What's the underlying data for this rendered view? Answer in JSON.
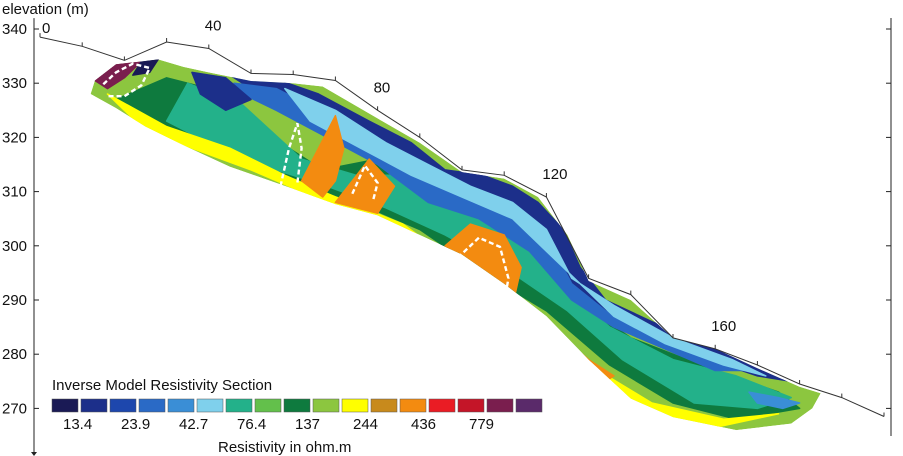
{
  "colors": {
    "palette": [
      "#1a1a55",
      "#1c2f8a",
      "#1d47ad",
      "#2a6ac6",
      "#3a8ed6",
      "#7fd0ec",
      "#23b18a",
      "#63c04b",
      "#0e7a3e",
      "#8cc63f",
      "#ffff00",
      "#c88a1c",
      "#f38b10",
      "#ea1c24",
      "#c41528",
      "#7a1e4e",
      "#5a2a6a"
    ],
    "boundary": "#ffffff",
    "topography": "#333333"
  },
  "chart_data": {
    "type": "heatmap",
    "ylabel": "elevation (m)",
    "xlabel": "",
    "ylim": [
      265,
      342
    ],
    "y_ticks": [
      340,
      330,
      320,
      310,
      300,
      290,
      280,
      270
    ],
    "x_distance_labels": [
      {
        "x": 0,
        "label": "0"
      },
      {
        "x": 40,
        "label": "40"
      },
      {
        "x": 80,
        "label": "80"
      },
      {
        "x": 120,
        "label": "120"
      },
      {
        "x": 160,
        "label": "160"
      }
    ],
    "topography": [
      [
        0,
        338.5
      ],
      [
        10,
        336.8
      ],
      [
        20,
        334.2
      ],
      [
        30,
        337.6
      ],
      [
        40,
        336.4
      ],
      [
        50,
        331.8
      ],
      [
        60,
        331.6
      ],
      [
        70,
        330.5
      ],
      [
        80,
        325.0
      ],
      [
        90,
        320.0
      ],
      [
        100,
        314.0
      ],
      [
        110,
        313.0
      ],
      [
        120,
        309.0
      ],
      [
        130,
        294.0
      ],
      [
        140,
        291.0
      ],
      [
        150,
        283.0
      ],
      [
        160,
        281.0
      ],
      [
        170,
        278.0
      ],
      [
        180,
        274.5
      ],
      [
        190,
        272.0
      ],
      [
        200,
        268.5
      ]
    ],
    "section_top": [
      [
        13,
        330.5
      ],
      [
        18,
        333.5
      ],
      [
        24,
        334.0
      ],
      [
        28,
        334.4
      ],
      [
        34,
        333.0
      ],
      [
        40,
        332.0
      ],
      [
        50,
        330.4
      ],
      [
        60,
        330.0
      ],
      [
        67,
        329.4
      ],
      [
        80,
        323.5
      ],
      [
        90,
        319.0
      ],
      [
        100,
        313.6
      ],
      [
        110,
        312.4
      ],
      [
        118,
        309.0
      ],
      [
        125,
        302.0
      ],
      [
        130,
        293.5
      ],
      [
        140,
        290.0
      ],
      [
        150,
        283.0
      ],
      [
        160,
        281.0
      ],
      [
        170,
        277.4
      ],
      [
        180,
        274.0
      ],
      [
        185,
        272.8
      ]
    ],
    "section_bottom": [
      [
        185,
        272.8
      ],
      [
        183,
        270.0
      ],
      [
        178,
        267.2
      ],
      [
        165,
        266.0
      ],
      [
        150,
        268.4
      ],
      [
        140,
        271.8
      ],
      [
        130,
        279.0
      ],
      [
        120,
        287.0
      ],
      [
        110,
        293.0
      ],
      [
        100,
        298.4
      ],
      [
        90,
        302.0
      ],
      [
        80,
        305.6
      ],
      [
        70,
        307.7
      ],
      [
        60,
        310.5
      ],
      [
        45,
        314.6
      ],
      [
        35,
        318.2
      ],
      [
        25,
        322.0
      ],
      [
        18,
        325.4
      ],
      [
        12,
        328.0
      ]
    ],
    "anomalies": [
      {
        "label": "conductive",
        "points": [
          [
            15,
            329.8
          ],
          [
            18,
            332.0
          ],
          [
            22,
            333.6
          ],
          [
            26,
            332.8
          ],
          [
            24,
            329.6
          ],
          [
            20,
            327.6
          ],
          [
            16,
            327.6
          ]
        ]
      },
      {
        "label": "resistive",
        "points": [
          [
            57,
            311.0
          ],
          [
            59,
            318.0
          ],
          [
            61,
            322.6
          ],
          [
            62,
            318.0
          ],
          [
            61,
            311.6
          ]
        ]
      },
      {
        "label": "resistive",
        "points": [
          [
            99,
            297.8
          ],
          [
            104,
            301.5
          ],
          [
            109,
            299.8
          ],
          [
            111,
            294.0
          ],
          [
            110,
            289.4
          ],
          [
            106,
            291.2
          ],
          [
            101,
            296.0
          ]
        ]
      },
      {
        "label": "resistive",
        "points": [
          [
            74,
            309.6
          ],
          [
            77,
            314.8
          ],
          [
            80,
            311.6
          ],
          [
            79,
            308.6
          ]
        ]
      },
      {
        "label": "resistive",
        "points": [
          [
            122,
            281.0
          ],
          [
            127,
            277.4
          ],
          [
            132,
            275.6
          ],
          [
            128,
            277.6
          ]
        ]
      }
    ],
    "bands": [
      {
        "index": 8,
        "points": [
          [
            30,
            331
          ],
          [
            45,
            328
          ],
          [
            55,
            320
          ],
          [
            67,
            314
          ],
          [
            80,
            316
          ],
          [
            95,
            305
          ],
          [
            110,
            305
          ],
          [
            125,
            291
          ],
          [
            140,
            283
          ],
          [
            160,
            277
          ],
          [
            175,
            273
          ],
          [
            180,
            270
          ],
          [
            165,
            268
          ],
          [
            150,
            271
          ],
          [
            135,
            278
          ],
          [
            120,
            288
          ],
          [
            105,
            295
          ],
          [
            90,
            303
          ],
          [
            75,
            308
          ],
          [
            60,
            312
          ],
          [
            45,
            316
          ],
          [
            32,
            321
          ],
          [
            22,
            324
          ],
          [
            18,
            327
          ]
        ]
      },
      {
        "index": 6,
        "points": [
          [
            35,
            330
          ],
          [
            48,
            326
          ],
          [
            62,
            316
          ],
          [
            75,
            313
          ],
          [
            88,
            313
          ],
          [
            98,
            308
          ],
          [
            110,
            306
          ],
          [
            122,
            294
          ],
          [
            135,
            285
          ],
          [
            150,
            279
          ],
          [
            165,
            276
          ],
          [
            178,
            272
          ],
          [
            170,
            270
          ],
          [
            155,
            271
          ],
          [
            138,
            279
          ],
          [
            125,
            288
          ],
          [
            110,
            296
          ],
          [
            96,
            302
          ],
          [
            82,
            307
          ],
          [
            68,
            311
          ],
          [
            52,
            315
          ],
          [
            40,
            319
          ],
          [
            30,
            323
          ]
        ]
      },
      {
        "index": 1,
        "points": [
          [
            42,
            333
          ],
          [
            55,
            331
          ],
          [
            66,
            328
          ],
          [
            78,
            323
          ],
          [
            88,
            319
          ],
          [
            96,
            314
          ],
          [
            105,
            313
          ],
          [
            112,
            311
          ],
          [
            118,
            308
          ],
          [
            124,
            303
          ],
          [
            128,
            296
          ],
          [
            134,
            290
          ],
          [
            145,
            286
          ],
          [
            160,
            281
          ],
          [
            170,
            278
          ],
          [
            178,
            275
          ],
          [
            170,
            276
          ],
          [
            155,
            280
          ],
          [
            140,
            284
          ],
          [
            128,
            290
          ],
          [
            118,
            300
          ],
          [
            108,
            305
          ],
          [
            95,
            309
          ],
          [
            82,
            317
          ],
          [
            70,
            322
          ],
          [
            58,
            326
          ],
          [
            48,
            330
          ]
        ]
      },
      {
        "index": 3,
        "points": [
          [
            46,
            330
          ],
          [
            56,
            329
          ],
          [
            66,
            325
          ],
          [
            78,
            320
          ],
          [
            86,
            317
          ],
          [
            94,
            311
          ],
          [
            104,
            309
          ],
          [
            112,
            307
          ],
          [
            118,
            304
          ],
          [
            122,
            299
          ],
          [
            126,
            293
          ],
          [
            134,
            288
          ],
          [
            146,
            284
          ],
          [
            158,
            280
          ],
          [
            168,
            277
          ],
          [
            160,
            277
          ],
          [
            148,
            281
          ],
          [
            136,
            285
          ],
          [
            126,
            290
          ],
          [
            116,
            299
          ],
          [
            104,
            305
          ],
          [
            92,
            308
          ],
          [
            80,
            315
          ],
          [
            68,
            320
          ],
          [
            56,
            325
          ],
          [
            48,
            328
          ]
        ]
      },
      {
        "index": 5,
        "points": [
          [
            58,
            329
          ],
          [
            70,
            325
          ],
          [
            82,
            319
          ],
          [
            92,
            315
          ],
          [
            102,
            311
          ],
          [
            112,
            308
          ],
          [
            120,
            303
          ],
          [
            126,
            294
          ],
          [
            136,
            289
          ],
          [
            150,
            283
          ],
          [
            164,
            279
          ],
          [
            172,
            276
          ],
          [
            162,
            278
          ],
          [
            148,
            282
          ],
          [
            136,
            287
          ],
          [
            124,
            296
          ],
          [
            112,
            305
          ],
          [
            100,
            309
          ],
          [
            88,
            313
          ],
          [
            76,
            318
          ],
          [
            64,
            323
          ]
        ]
      },
      {
        "index": 10,
        "points": [
          [
            16,
            328
          ],
          [
            30,
            322
          ],
          [
            45,
            318
          ],
          [
            58,
            313
          ],
          [
            70,
            309
          ],
          [
            86,
            304
          ],
          [
            100,
            296
          ],
          [
            115,
            289
          ],
          [
            128,
            279
          ],
          [
            145,
            271
          ],
          [
            162,
            268
          ],
          [
            175,
            269
          ],
          [
            160,
            266.5
          ],
          [
            140,
            270
          ],
          [
            122,
            281
          ],
          [
            108,
            292
          ],
          [
            94,
            299
          ],
          [
            80,
            305
          ],
          [
            65,
            309
          ],
          [
            50,
            314
          ],
          [
            36,
            318
          ],
          [
            24,
            322
          ]
        ]
      },
      {
        "index": 12,
        "points": [
          [
            62,
            312
          ],
          [
            66,
            318
          ],
          [
            70,
            324
          ],
          [
            72,
            318
          ],
          [
            70,
            312
          ],
          [
            67,
            309
          ]
        ]
      },
      {
        "index": 12,
        "points": [
          [
            70,
            308
          ],
          [
            74,
            312
          ],
          [
            78,
            316
          ],
          [
            84,
            311
          ],
          [
            80,
            306
          ]
        ]
      },
      {
        "index": 12,
        "points": [
          [
            96,
            300
          ],
          [
            102,
            304
          ],
          [
            110,
            302
          ],
          [
            114,
            296
          ],
          [
            112,
            289
          ],
          [
            106,
            291
          ]
        ]
      },
      {
        "index": 12,
        "points": [
          [
            124,
            283
          ],
          [
            130,
            279
          ],
          [
            136,
            276
          ],
          [
            132,
            274
          ],
          [
            126,
            278
          ]
        ]
      },
      {
        "index": 15,
        "points": [
          [
            13,
            330.5
          ],
          [
            18,
            333.5
          ],
          [
            24,
            334
          ],
          [
            20,
            331
          ],
          [
            16,
            329
          ]
        ]
      },
      {
        "index": 0,
        "points": [
          [
            24,
            334
          ],
          [
            28,
            334.4
          ],
          [
            26,
            332
          ],
          [
            22,
            331.5
          ]
        ]
      },
      {
        "index": 1,
        "points": [
          [
            36,
            332
          ],
          [
            44,
            331
          ],
          [
            50,
            327
          ],
          [
            44,
            325
          ],
          [
            38,
            328
          ]
        ]
      },
      {
        "index": 4,
        "points": [
          [
            168,
            273
          ],
          [
            175,
            272
          ],
          [
            180,
            271
          ],
          [
            176,
            270
          ],
          [
            170,
            271
          ]
        ]
      }
    ],
    "legend": {
      "title": "Inverse Model Resistivity Section",
      "labels": [
        "13.4",
        "23.9",
        "42.7",
        "76.4",
        "137",
        "244",
        "436",
        "779"
      ],
      "unit": "Resistivity in ohm.m"
    }
  }
}
